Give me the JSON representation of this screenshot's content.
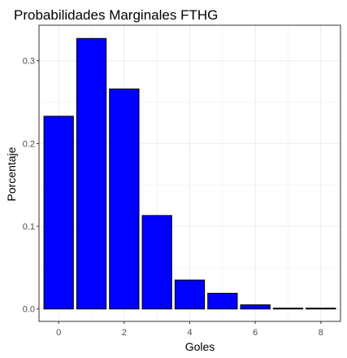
{
  "chart_data": {
    "type": "bar",
    "title": "Probabilidades Marginales FTHG",
    "xlabel": "Goles",
    "ylabel": "Porcentaje",
    "x": [
      0,
      1,
      2,
      3,
      4,
      5,
      6,
      7,
      8
    ],
    "values": [
      0.233,
      0.327,
      0.266,
      0.113,
      0.035,
      0.019,
      0.005,
      0.001,
      0.001
    ],
    "xlim": [
      -0.6,
      8.6
    ],
    "ylim": [
      -0.015,
      0.343
    ],
    "x_ticks": [
      0,
      2,
      4,
      6,
      8
    ],
    "y_ticks": [
      0.0,
      0.1,
      0.2,
      0.3
    ],
    "x_tick_labels": [
      "0",
      "2",
      "4",
      "6",
      "8"
    ],
    "y_tick_labels": [
      "0.0",
      "0.1",
      "0.2",
      "0.3"
    ],
    "grid": true,
    "bar_fill": "#0000ff",
    "bar_outline": "#000000",
    "panel_border": "#333333",
    "grid_color": "#ebebeb"
  }
}
